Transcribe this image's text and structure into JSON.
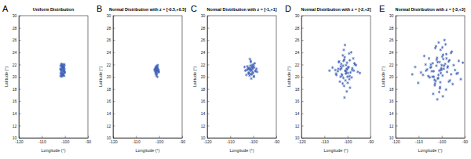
{
  "chart_data": [
    {
      "type": "scatter",
      "annotations": [
        "A"
      ],
      "title": "Uniform Distribution",
      "x_label": "Longitude (°)",
      "y_label": "Latitude (°)",
      "color": "#4063b8",
      "marker": "asterisk",
      "xlim": [
        -120,
        -90
      ],
      "xticks": [
        -120,
        -110,
        -100,
        -90
      ],
      "ylim": [
        10,
        30
      ],
      "yticks": [
        10,
        12,
        14,
        16,
        18,
        20,
        22,
        24,
        26,
        28,
        30
      ],
      "x": [
        -101.9,
        -101.5,
        -101.1,
        -100.7,
        -100.3,
        -101.8,
        -101.3,
        -100.9,
        -100.5,
        -100.1,
        -101.7,
        -101.2,
        -100.8,
        -100.4,
        -101.95,
        -101.6,
        -101.0,
        -100.6,
        -100.2,
        -101.4,
        -100.95,
        -100.35,
        -101.85,
        -101.25,
        -100.75,
        -100.15,
        -101.55,
        -101.05,
        -100.55,
        -101.65,
        -100.85,
        -100.25,
        -101.35,
        -100.65,
        -101.75,
        -101.15,
        -100.45,
        -100.05,
        -101.45,
        -100.9
      ],
      "values": [
        20.1,
        20.3,
        20.2,
        20.4,
        20.15,
        20.6,
        20.7,
        20.55,
        20.8,
        20.65,
        21.0,
        20.9,
        21.1,
        21.05,
        21.3,
        21.2,
        21.4,
        21.35,
        21.25,
        21.6,
        21.7,
        21.55,
        21.8,
        21.9,
        21.75,
        21.95,
        22.0,
        21.85,
        22.05,
        20.45,
        20.35,
        20.95,
        20.05,
        21.5,
        21.15,
        21.45,
        21.65,
        20.75,
        22.1,
        20.25
      ]
    },
    {
      "type": "scatter",
      "annotations": [
        "B"
      ],
      "title": "Normal Distribution with z = [-0.5,+0.5]",
      "x_label": "Longitude (°)",
      "y_label": "Latitude (°)",
      "color": "#4063b8",
      "marker": "asterisk",
      "xlim": [
        -120,
        -90
      ],
      "xticks": [
        -120,
        -110,
        -100,
        -90
      ],
      "ylim": [
        10,
        30
      ],
      "yticks": [
        10,
        12,
        14,
        16,
        18,
        20,
        22,
        24,
        26,
        28,
        30
      ],
      "x": [
        -101.0,
        -100.6,
        -101.4,
        -100.8,
        -101.2,
        -100.3,
        -101.7,
        -100.9,
        -101.1,
        -100.5,
        -101.5,
        -100.7,
        -101.3,
        -100.2,
        -101.8,
        -100.95,
        -101.05,
        -100.4,
        -101.6,
        -100.85,
        -101.25,
        -100.65,
        -101.35,
        -100.1,
        -102.0,
        -100.75,
        -101.15,
        -100.55,
        -101.45,
        -100.9
      ],
      "values": [
        21.0,
        21.2,
        20.8,
        21.4,
        21.1,
        20.9,
        21.3,
        20.6,
        21.5,
        21.0,
        20.7,
        21.6,
        21.2,
        21.1,
        20.95,
        21.8,
        20.4,
        20.85,
        21.45,
        21.05,
        20.2,
        21.3,
        21.65,
        20.75,
        21.15,
        20.0,
        21.25,
        21.9,
        20.55,
        21.35
      ]
    },
    {
      "type": "scatter",
      "annotations": [
        "C"
      ],
      "title": "Normal Distribution with z = [-1,+1]",
      "x_label": "Longitude (°)",
      "y_label": "Latitude (°)",
      "color": "#4063b8",
      "marker": "asterisk",
      "xlim": [
        -120,
        -90
      ],
      "xticks": [
        -120,
        -110,
        -100,
        -90
      ],
      "ylim": [
        10,
        30
      ],
      "yticks": [
        10,
        12,
        14,
        16,
        18,
        20,
        22,
        24,
        26,
        28,
        30
      ],
      "x": [
        -101.0,
        -100.2,
        -101.8,
        -99.6,
        -102.4,
        -100.7,
        -101.3,
        -99.1,
        -102.9,
        -100.0,
        -101.6,
        -100.5,
        -102.1,
        -99.8,
        -101.1,
        -103.5,
        -98.6,
        -100.9,
        -101.4,
        -100.3,
        -102.6,
        -99.4,
        -101.9,
        -100.6,
        -101.2,
        -100.1,
        -103.0,
        -99.0,
        -101.5,
        -100.8,
        -102.2,
        -99.7,
        -100.4,
        -101.7,
        -98.3,
        -103.8,
        -100.95,
        -101.05,
        -102.0,
        -99.9
      ],
      "values": [
        21.0,
        21.3,
        20.7,
        21.5,
        21.2,
        20.4,
        21.8,
        20.9,
        21.1,
        22.0,
        20.2,
        21.6,
        20.6,
        20.1,
        22.4,
        21.0,
        21.3,
        19.7,
        21.4,
        20.8,
        21.7,
        22.2,
        20.5,
        21.9,
        21.1,
        20.6,
        20.3,
        21.0,
        22.9,
        21.2,
        21.45,
        20.0,
        21.55,
        21.25,
        20.8,
        21.6,
        20.45,
        22.6,
        21.35,
        21.75
      ]
    },
    {
      "type": "scatter",
      "annotations": [
        "D"
      ],
      "title": "Normal Distribution with z = [-2,+2]",
      "x_label": "Longitude (°)",
      "y_label": "Latitude (°)",
      "color": "#4063b8",
      "marker": "asterisk",
      "xlim": [
        -120,
        -90
      ],
      "xticks": [
        -120,
        -110,
        -100,
        -90
      ],
      "ylim": [
        10,
        30
      ],
      "yticks": [
        10,
        12,
        14,
        16,
        18,
        20,
        22,
        24,
        26,
        28,
        30
      ],
      "x": [
        -101.0,
        -99.5,
        -102.5,
        -100.2,
        -103.1,
        -98.7,
        -101.8,
        -100.6,
        -104.2,
        -97.9,
        -101.4,
        -99.1,
        -102.9,
        -100.9,
        -105.3,
        -96.8,
        -101.2,
        -99.8,
        -103.6,
        -98.2,
        -100.4,
        -102.1,
        -99.3,
        -104.8,
        -97.2,
        -101.6,
        -100.0,
        -102.7,
        -98.9,
        -106.5,
        -95.5,
        -101.1,
        -100.7,
        -103.3,
        -99.0,
        -101.9,
        -97.5,
        -104.0,
        -100.3,
        -102.3,
        -98.4,
        -107.8,
        -94.6,
        -101.3,
        -99.7,
        -103.8,
        -96.3,
        -100.8,
        -102.0,
        -99.2,
        -105.0,
        -97.0,
        -101.5,
        -100.1,
        -103.0,
        -98.0,
        -101.7,
        -99.9,
        -102.6,
        -100.5
      ],
      "values": [
        21.0,
        21.6,
        20.4,
        22.3,
        21.2,
        20.7,
        19.8,
        21.9,
        20.9,
        21.4,
        22.8,
        20.1,
        21.7,
        19.4,
        21.1,
        22.0,
        23.2,
        20.6,
        22.5,
        19.9,
        21.3,
        18.9,
        23.8,
        20.3,
        21.0,
        24.4,
        20.0,
        22.1,
        18.2,
        21.5,
        20.8,
        25.2,
        20.5,
        19.2,
        22.7,
        21.8,
        23.0,
        21.3,
        17.6,
        20.2,
        24.0,
        21.0,
        20.6,
        16.6,
        21.5,
        22.4,
        21.9,
        20.9,
        23.5,
        19.6,
        20.5,
        22.2,
        18.5,
        21.2,
        20.0,
        21.1,
        22.6,
        19.0,
        21.4,
        20.7
      ]
    },
    {
      "type": "scatter",
      "annotations": [
        "E"
      ],
      "title": "Normal Distribution with z = [-3,+3]",
      "x_label": "Longitude (°)",
      "y_label": "Latitude (°)",
      "color": "#4063b8",
      "marker": "asterisk",
      "xlim": [
        -120,
        -90
      ],
      "xticks": [
        -120,
        -110,
        -100,
        -90
      ],
      "ylim": [
        10,
        30
      ],
      "yticks": [
        10,
        12,
        14,
        16,
        18,
        20,
        22,
        24,
        26,
        28,
        30
      ],
      "x": [
        -101.0,
        -98.5,
        -103.4,
        -99.8,
        -104.9,
        -96.9,
        -102.2,
        -100.4,
        -106.3,
        -95.6,
        -101.7,
        -99.0,
        -103.0,
        -100.9,
        -108.1,
        -94.2,
        -101.3,
        -97.7,
        -105.5,
        -98.1,
        -100.2,
        -102.8,
        -96.4,
        -107.0,
        -93.5,
        -101.9,
        -99.4,
        -104.3,
        -97.3,
        -110.2,
        -92.6,
        -100.7,
        -102.5,
        -99.1,
        -105.8,
        -96.0,
        -103.7,
        -100.0,
        -112.8,
        -90.8,
        -101.5,
        -98.8,
        -104.6,
        -99.6,
        -102.0,
        -95.2,
        -106.8,
        -100.5,
        -103.1,
        -97.0,
        -109.0,
        -94.8,
        -101.1,
        -99.3,
        -104.0,
        -98.3,
        -102.6,
        -100.1,
        -107.6,
        -93.0,
        -100.8,
        -103.9,
        -97.5,
        -105.2,
        -99.7,
        -101.4,
        -96.6,
        -102.9,
        -100.3,
        -98.0,
        -111.5,
        -91.7,
        -101.8,
        -99.5,
        -103.5,
        -97.9,
        -100.6,
        -102.3,
        -95.9,
        -104.7
      ],
      "values": [
        21.0,
        22.1,
        20.0,
        23.3,
        21.5,
        19.2,
        22.8,
        20.6,
        21.2,
        24.1,
        19.7,
        21.8,
        18.6,
        22.4,
        20.3,
        21.1,
        25.6,
        20.8,
        23.0,
        17.9,
        21.4,
        24.7,
        19.4,
        22.0,
        20.5,
        16.3,
        23.6,
        20.9,
        21.7,
        19.0,
        22.6,
        18.3,
        25.0,
        21.3,
        20.1,
        23.9,
        17.2,
        21.9,
        20.4,
        22.3,
        19.8,
        26.0,
        21.6,
        20.2,
        23.1,
        18.8,
        21.0,
        24.4,
        19.5,
        22.5,
        20.7,
        21.9,
        17.5,
        22.9,
        20.0,
        25.3,
        19.3,
        21.2,
        23.4,
        20.6,
        18.1,
        22.2,
        21.5,
        19.9,
        24.8,
        20.3,
        22.7,
        18.9,
        21.1,
        23.7,
        21.6,
        19.6,
        22.4,
        16.8,
        20.9,
        23.0,
        19.1,
        21.8,
        20.4,
        22.0
      ]
    }
  ]
}
